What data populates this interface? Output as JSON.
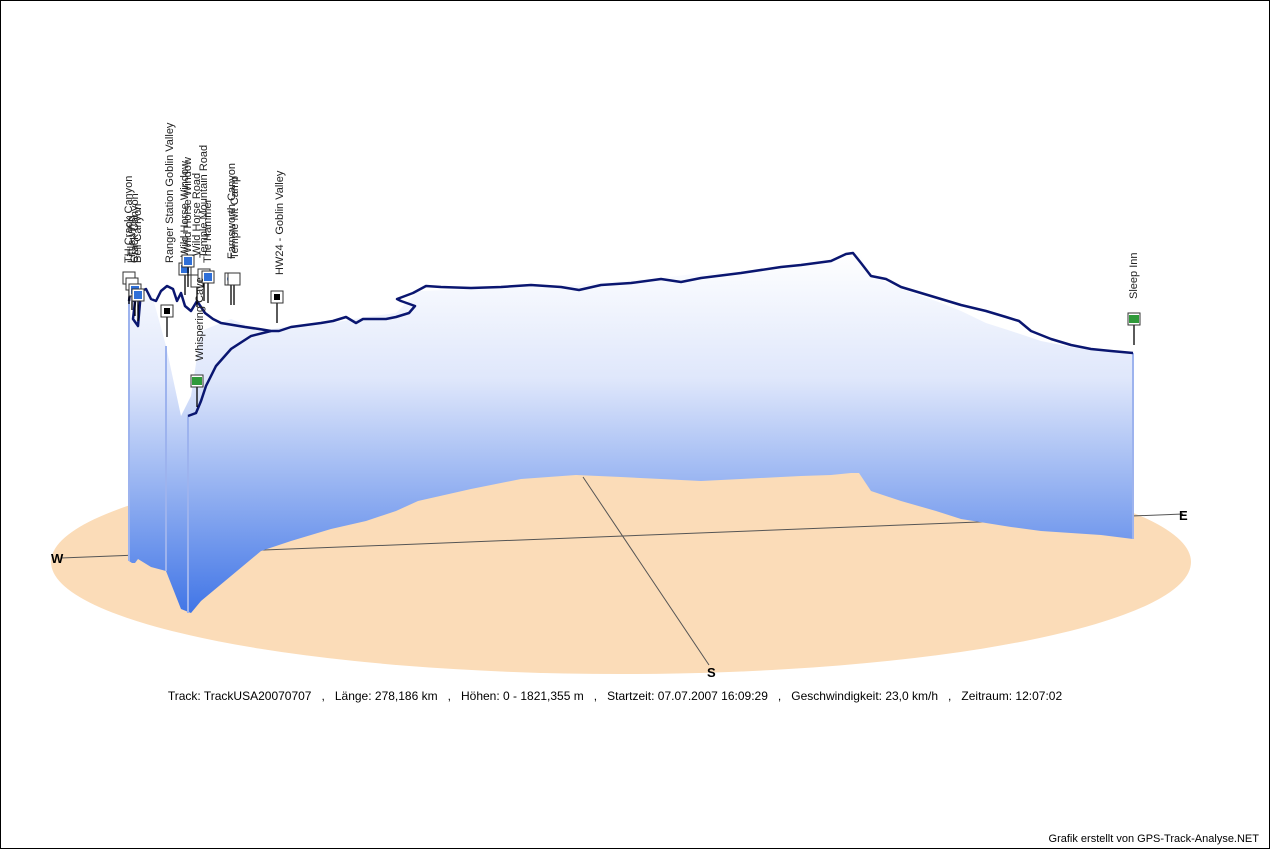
{
  "chart_data": {
    "type": "area",
    "compass": {
      "west": "W",
      "east": "E",
      "south": "S"
    },
    "waypoints": [
      "TH Crack Canyon",
      "Little Wild",
      "Crack Canyon",
      "Bell Canyon",
      "Ranger Station Goblin Valley",
      "Wild Horse Window",
      "Wild Horse Window",
      "Wild Horse Road",
      "Temple Mountain Road",
      "The Hammer",
      "Farnsworth Canyon",
      "Temple Mt Camp",
      "HW24 - Goblin Valley",
      "Whispering Cave",
      "Sleep Inn"
    ],
    "elevation_profile": {
      "unit": "m",
      "values": [
        1590,
        1560,
        1555,
        1510,
        1470,
        1515,
        1575,
        1570,
        1565,
        1505,
        1440,
        1480,
        1535,
        1540,
        1550,
        1565,
        1585,
        1590,
        1605,
        1600,
        1600,
        1615,
        1630,
        1640,
        1655,
        1660,
        1662,
        1670,
        1685,
        1700,
        1710,
        1720,
        1730,
        1740,
        1720,
        1710,
        1690,
        1670,
        1640,
        1620,
        1590,
        1560,
        1540,
        1530,
        1520,
        1515
      ]
    },
    "ylim": [
      0,
      1821.355
    ]
  },
  "info": {
    "track": "Track: TrackUSA20070707",
    "length": "Länge: 278,186 km",
    "heights": "Höhen: 0 - 1821,355 m",
    "start": "Startzeit: 07.07.2007 16:09:29",
    "speed": "Geschwindigkeit: 23,0 km/h",
    "duration": "Zeitraum: 12:07:02",
    "separator": ","
  },
  "credit": "Grafik erstellt von GPS-Track-Analyse.NET",
  "colors": {
    "ground": "#fbdcb8",
    "track": "#0a1670",
    "curtain_top": "#eef2fd",
    "curtain_bottom": "#4f7fe8",
    "axis": "#555555"
  }
}
